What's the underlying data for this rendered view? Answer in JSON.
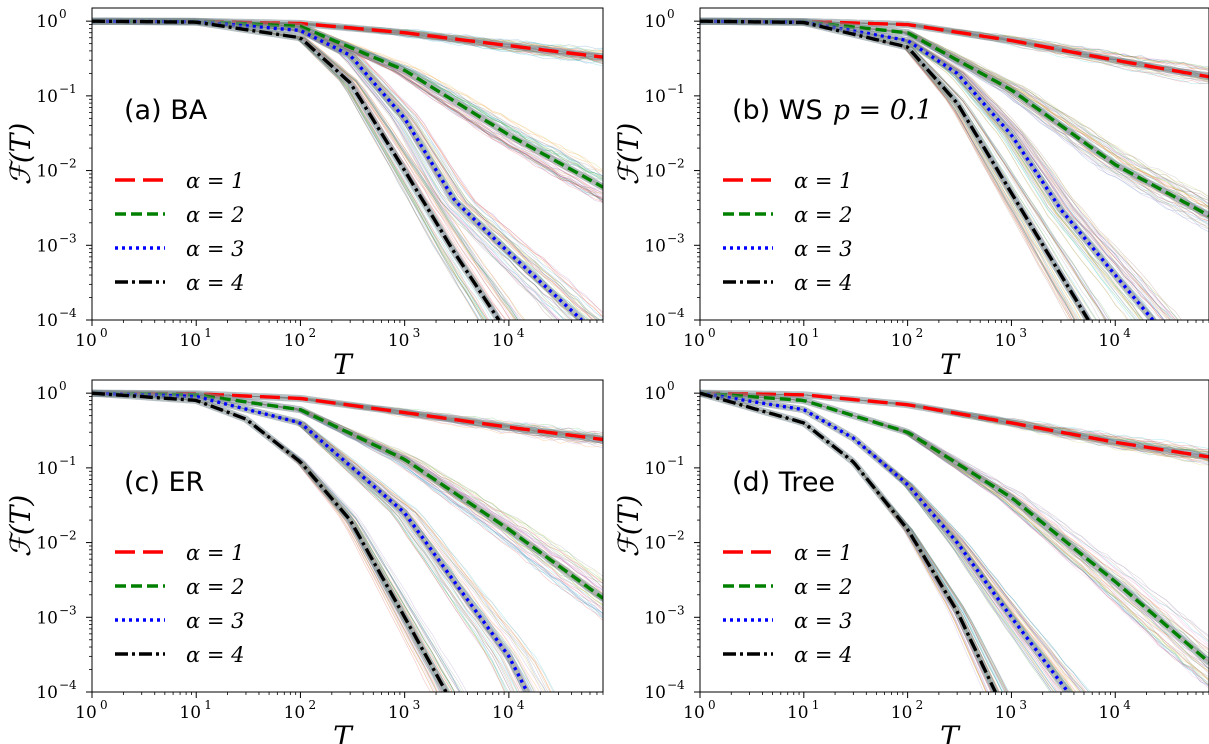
{
  "chart_data": [
    {
      "type": "line",
      "panel_label": "(a) BA",
      "xlabel": "T",
      "ylabel": "ℱ(T)",
      "xscale": "log",
      "yscale": "log",
      "xlim": [
        1,
        80000
      ],
      "ylim": [
        0.0001,
        1.5
      ],
      "x_ticks": [
        {
          "base": "10",
          "exp": "0"
        },
        {
          "base": "10",
          "exp": "1"
        },
        {
          "base": "10",
          "exp": "2"
        },
        {
          "base": "10",
          "exp": "3"
        },
        {
          "base": "10",
          "exp": "4"
        }
      ],
      "y_ticks": [
        {
          "base": "10",
          "exp": "0"
        },
        {
          "base": "10",
          "exp": "−1"
        },
        {
          "base": "10",
          "exp": "−2"
        },
        {
          "base": "10",
          "exp": "−3"
        },
        {
          "base": "10",
          "exp": "−4"
        }
      ],
      "legend_position": "left",
      "series": [
        {
          "name": "α = 1",
          "color": "#ff0000",
          "style": "dashed-long",
          "x": [
            1,
            10,
            100,
            1000,
            10000,
            80000
          ],
          "y": [
            1.0,
            0.995,
            0.93,
            0.7,
            0.47,
            0.33
          ]
        },
        {
          "name": "α = 2",
          "color": "#008000",
          "style": "dashed",
          "x": [
            1,
            10,
            100,
            1000,
            10000,
            80000
          ],
          "y": [
            1.0,
            0.99,
            0.85,
            0.22,
            0.03,
            0.006
          ]
        },
        {
          "name": "α = 3",
          "color": "#0000ff",
          "style": "dotted",
          "x": [
            1,
            10,
            100,
            300,
            1000,
            3000,
            10000,
            50000
          ],
          "y": [
            1.0,
            0.98,
            0.75,
            0.35,
            0.05,
            0.004,
            0.0008,
            0.0001
          ]
        },
        {
          "name": "α = 4",
          "color": "#000000",
          "style": "dashdot",
          "x": [
            1,
            10,
            100,
            300,
            1000,
            3000,
            8000
          ],
          "y": [
            1.0,
            0.97,
            0.6,
            0.15,
            0.01,
            0.0008,
            0.0001
          ]
        }
      ]
    },
    {
      "type": "line",
      "panel_label": "(b) WS",
      "panel_label_math": "p = 0.1",
      "xlabel": "T",
      "ylabel": "ℱ(T)",
      "xscale": "log",
      "yscale": "log",
      "xlim": [
        1,
        80000
      ],
      "ylim": [
        0.0001,
        1.5
      ],
      "x_ticks": [
        {
          "base": "10",
          "exp": "0"
        },
        {
          "base": "10",
          "exp": "1"
        },
        {
          "base": "10",
          "exp": "2"
        },
        {
          "base": "10",
          "exp": "3"
        },
        {
          "base": "10",
          "exp": "4"
        }
      ],
      "y_ticks": [
        {
          "base": "10",
          "exp": "0"
        },
        {
          "base": "10",
          "exp": "−1"
        },
        {
          "base": "10",
          "exp": "−2"
        },
        {
          "base": "10",
          "exp": "−3"
        },
        {
          "base": "10",
          "exp": "−4"
        }
      ],
      "legend_position": "left",
      "series": [
        {
          "name": "α = 1",
          "color": "#ff0000",
          "style": "dashed-long",
          "x": [
            1,
            10,
            100,
            1000,
            10000,
            80000
          ],
          "y": [
            1.0,
            0.99,
            0.9,
            0.55,
            0.3,
            0.18
          ]
        },
        {
          "name": "α = 2",
          "color": "#008000",
          "style": "dashed",
          "x": [
            1,
            10,
            100,
            1000,
            10000,
            80000
          ],
          "y": [
            1.0,
            0.98,
            0.7,
            0.12,
            0.012,
            0.0025
          ]
        },
        {
          "name": "α = 3",
          "color": "#0000ff",
          "style": "dotted",
          "x": [
            1,
            10,
            100,
            300,
            1000,
            3000,
            10000,
            23000
          ],
          "y": [
            1.0,
            0.97,
            0.55,
            0.2,
            0.03,
            0.003,
            0.0004,
            0.0001
          ]
        },
        {
          "name": "α = 4",
          "color": "#000000",
          "style": "dashdot",
          "x": [
            1,
            10,
            100,
            300,
            1000,
            3000,
            5500
          ],
          "y": [
            1.0,
            0.96,
            0.45,
            0.08,
            0.005,
            0.0004,
            0.0001
          ]
        }
      ]
    },
    {
      "type": "line",
      "panel_label": "(c) ER",
      "xlabel": "T",
      "ylabel": "ℱ(T)",
      "xscale": "log",
      "yscale": "log",
      "xlim": [
        1,
        80000
      ],
      "ylim": [
        0.0001,
        1.5
      ],
      "x_ticks": [
        {
          "base": "10",
          "exp": "0"
        },
        {
          "base": "10",
          "exp": "1"
        },
        {
          "base": "10",
          "exp": "2"
        },
        {
          "base": "10",
          "exp": "3"
        },
        {
          "base": "10",
          "exp": "4"
        }
      ],
      "y_ticks": [
        {
          "base": "10",
          "exp": "0"
        },
        {
          "base": "10",
          "exp": "−1"
        },
        {
          "base": "10",
          "exp": "−2"
        },
        {
          "base": "10",
          "exp": "−3"
        },
        {
          "base": "10",
          "exp": "−4"
        }
      ],
      "legend_position": "left",
      "series": [
        {
          "name": "α = 1",
          "color": "#ff0000",
          "style": "dashed-long",
          "x": [
            1,
            10,
            100,
            1000,
            10000,
            80000
          ],
          "y": [
            1.0,
            0.98,
            0.85,
            0.55,
            0.35,
            0.24
          ]
        },
        {
          "name": "α = 2",
          "color": "#008000",
          "style": "dashed",
          "x": [
            1,
            10,
            100,
            1000,
            10000,
            80000
          ],
          "y": [
            1.0,
            0.95,
            0.6,
            0.13,
            0.015,
            0.0018
          ]
        },
        {
          "name": "α = 3",
          "color": "#0000ff",
          "style": "dotted",
          "x": [
            1,
            10,
            100,
            1000,
            3000,
            10000,
            15000
          ],
          "y": [
            1.0,
            0.9,
            0.4,
            0.025,
            0.003,
            0.0003,
            0.0001
          ]
        },
        {
          "name": "α = 4",
          "color": "#000000",
          "style": "dashdot",
          "x": [
            1,
            10,
            30,
            100,
            300,
            1000,
            2500
          ],
          "y": [
            1.0,
            0.8,
            0.45,
            0.12,
            0.02,
            0.001,
            0.0001
          ]
        }
      ]
    },
    {
      "type": "line",
      "panel_label": "(d) Tree",
      "xlabel": "T",
      "ylabel": "ℱ(T)",
      "xscale": "log",
      "yscale": "log",
      "xlim": [
        1,
        80000
      ],
      "ylim": [
        0.0001,
        1.5
      ],
      "x_ticks": [
        {
          "base": "10",
          "exp": "0"
        },
        {
          "base": "10",
          "exp": "1"
        },
        {
          "base": "10",
          "exp": "2"
        },
        {
          "base": "10",
          "exp": "3"
        },
        {
          "base": "10",
          "exp": "4"
        }
      ],
      "y_ticks": [
        {
          "base": "10",
          "exp": "0"
        },
        {
          "base": "10",
          "exp": "−1"
        },
        {
          "base": "10",
          "exp": "−2"
        },
        {
          "base": "10",
          "exp": "−3"
        },
        {
          "base": "10",
          "exp": "−4"
        }
      ],
      "legend_position": "left",
      "series": [
        {
          "name": "α = 1",
          "color": "#ff0000",
          "style": "dashed-long",
          "x": [
            1,
            10,
            100,
            1000,
            10000,
            80000
          ],
          "y": [
            1.0,
            0.95,
            0.7,
            0.4,
            0.22,
            0.14
          ]
        },
        {
          "name": "α = 2",
          "color": "#008000",
          "style": "dashed",
          "x": [
            1,
            10,
            100,
            1000,
            10000,
            80000
          ],
          "y": [
            1.0,
            0.8,
            0.3,
            0.04,
            0.003,
            0.00025
          ]
        },
        {
          "name": "α = 3",
          "color": "#0000ff",
          "style": "dotted",
          "x": [
            1,
            10,
            30,
            100,
            300,
            1000,
            3500
          ],
          "y": [
            1.0,
            0.6,
            0.25,
            0.06,
            0.01,
            0.001,
            0.0001
          ]
        },
        {
          "name": "α = 4",
          "color": "#000000",
          "style": "dashdot",
          "x": [
            1,
            10,
            30,
            100,
            300,
            700
          ],
          "y": [
            1.0,
            0.4,
            0.12,
            0.015,
            0.0012,
            0.0001
          ]
        }
      ]
    }
  ]
}
